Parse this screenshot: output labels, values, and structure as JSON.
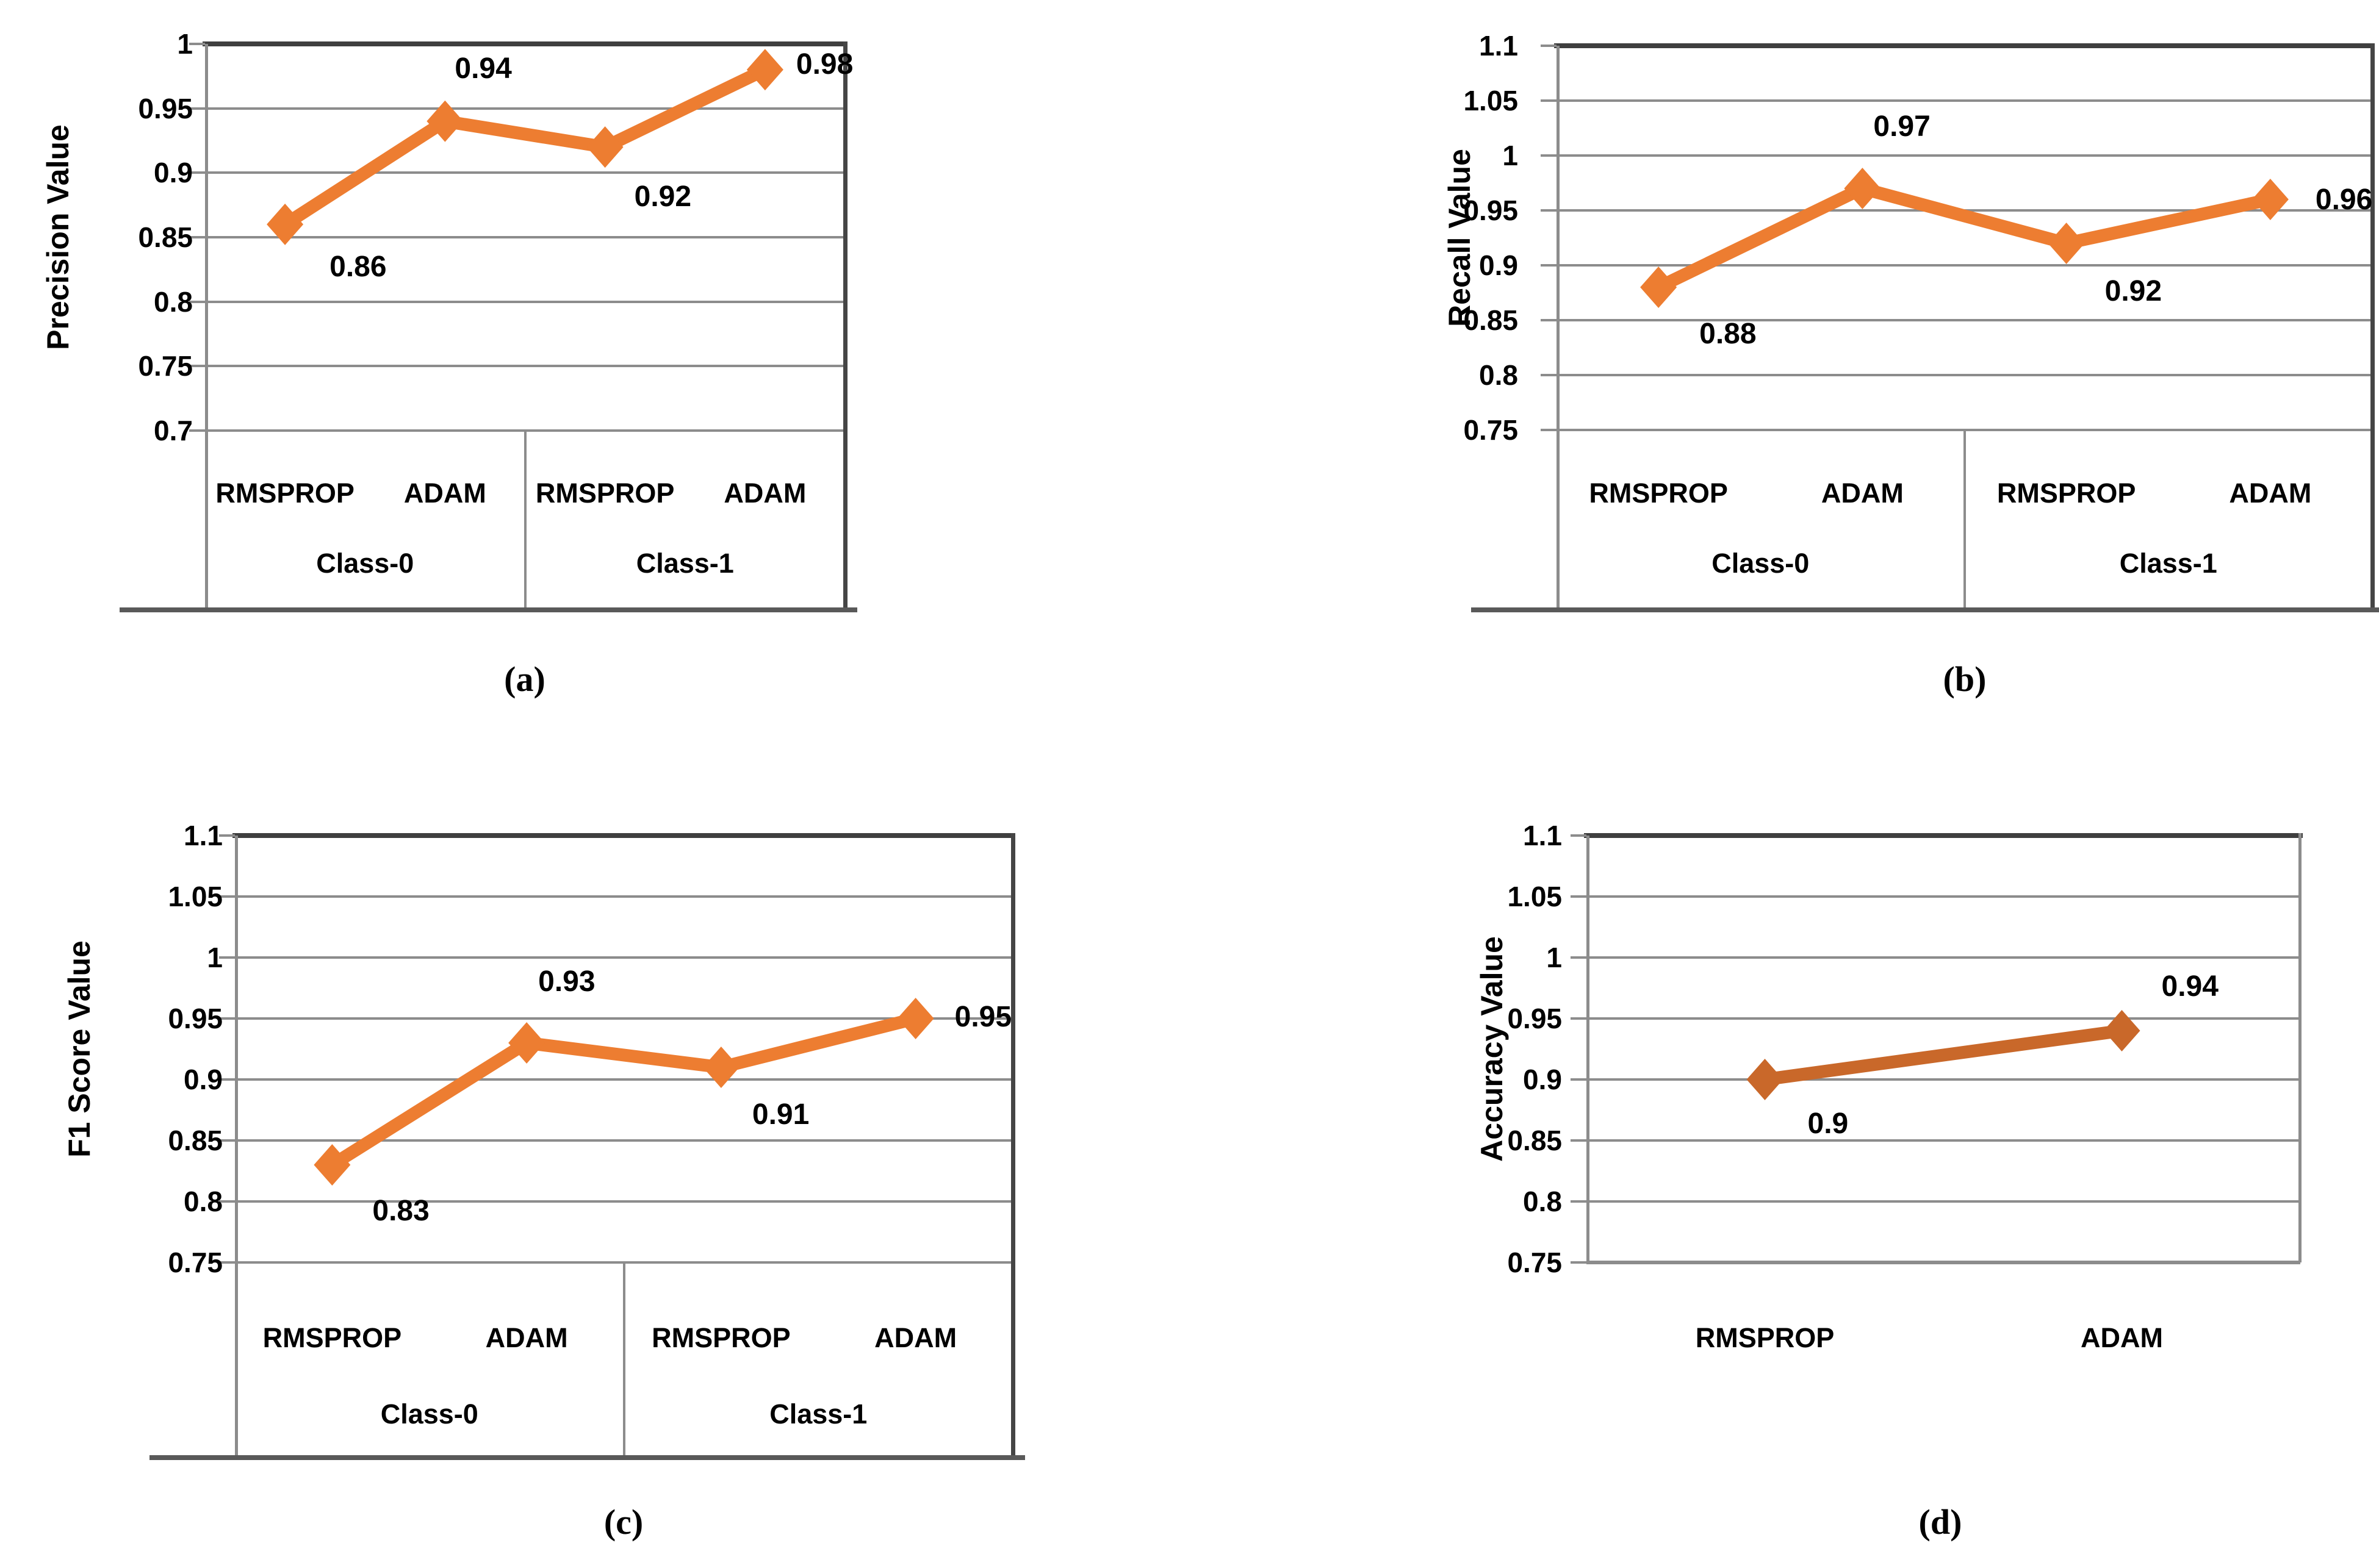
{
  "figure": {
    "background": "#FFFFFF",
    "grid_color": "#8C8C8C",
    "top_border_color": "#3F3F3F",
    "baseline_color": "#595959",
    "accent_orange": "#ED7D31",
    "accent_dark_orange": "#C9682A"
  },
  "chart_data": [
    {
      "id": "a",
      "type": "line",
      "ylabel": "Precision Value",
      "caption": "(a)",
      "ymin": 0.7,
      "ymax": 1.0,
      "ytick_step": 0.05,
      "yticks": [
        "1",
        "0.95",
        "0.9",
        "0.85",
        "0.8",
        "0.75",
        "0.7"
      ],
      "categories": [
        "RMSPROP",
        "ADAM",
        "RMSPROP",
        "ADAM"
      ],
      "groups": [
        "Class-0",
        "Class-1"
      ],
      "values": [
        0.86,
        0.94,
        0.92,
        0.98
      ],
      "data_labels": [
        "0.86",
        "0.94",
        "0.92",
        "0.98"
      ],
      "line_color": "#ED7D31",
      "marker": "diamond",
      "grid": true,
      "legend": false
    },
    {
      "id": "b",
      "type": "line",
      "ylabel": "Recall Value",
      "caption": "(b)",
      "ymin": 0.75,
      "ymax": 1.1,
      "ytick_step": 0.05,
      "yticks": [
        "1.1",
        "1.05",
        "1",
        "0.95",
        "0.9",
        "0.85",
        "0.8",
        "0.75"
      ],
      "categories": [
        "RMSPROP",
        "ADAM",
        "RMSPROP",
        "ADAM"
      ],
      "groups": [
        "Class-0",
        "Class-1"
      ],
      "values": [
        0.88,
        0.97,
        0.92,
        0.96
      ],
      "data_labels": [
        "0.88",
        "0.97",
        "0.92",
        "0.96"
      ],
      "line_color": "#ED7D31",
      "marker": "diamond",
      "grid": true,
      "legend": false
    },
    {
      "id": "c",
      "type": "line",
      "ylabel": "F1 Score Value",
      "caption": "(c)",
      "ymin": 0.75,
      "ymax": 1.1,
      "ytick_step": 0.05,
      "yticks": [
        "1.1",
        "1.05",
        "1",
        "0.95",
        "0.9",
        "0.85",
        "0.8",
        "0.75"
      ],
      "categories": [
        "RMSPROP",
        "ADAM",
        "RMSPROP",
        "ADAM"
      ],
      "groups": [
        "Class-0",
        "Class-1"
      ],
      "values": [
        0.83,
        0.93,
        0.91,
        0.95
      ],
      "data_labels": [
        "0.83",
        "0.93",
        "0.91",
        "0.95"
      ],
      "line_color": "#ED7D31",
      "marker": "diamond",
      "grid": true,
      "legend": false
    },
    {
      "id": "d",
      "type": "line",
      "ylabel": "Accuracy Value",
      "caption": "(d)",
      "ymin": 0.75,
      "ymax": 1.1,
      "ytick_step": 0.05,
      "yticks": [
        "1.1",
        "1.05",
        "1",
        "0.95",
        "0.9",
        "0.85",
        "0.8",
        "0.75"
      ],
      "categories": [
        "RMSPROP",
        "ADAM"
      ],
      "groups": null,
      "values": [
        0.9,
        0.94
      ],
      "data_labels": [
        "0.9",
        "0.94"
      ],
      "line_color": "#C9682A",
      "marker": "diamond",
      "grid": true,
      "legend": false
    }
  ]
}
